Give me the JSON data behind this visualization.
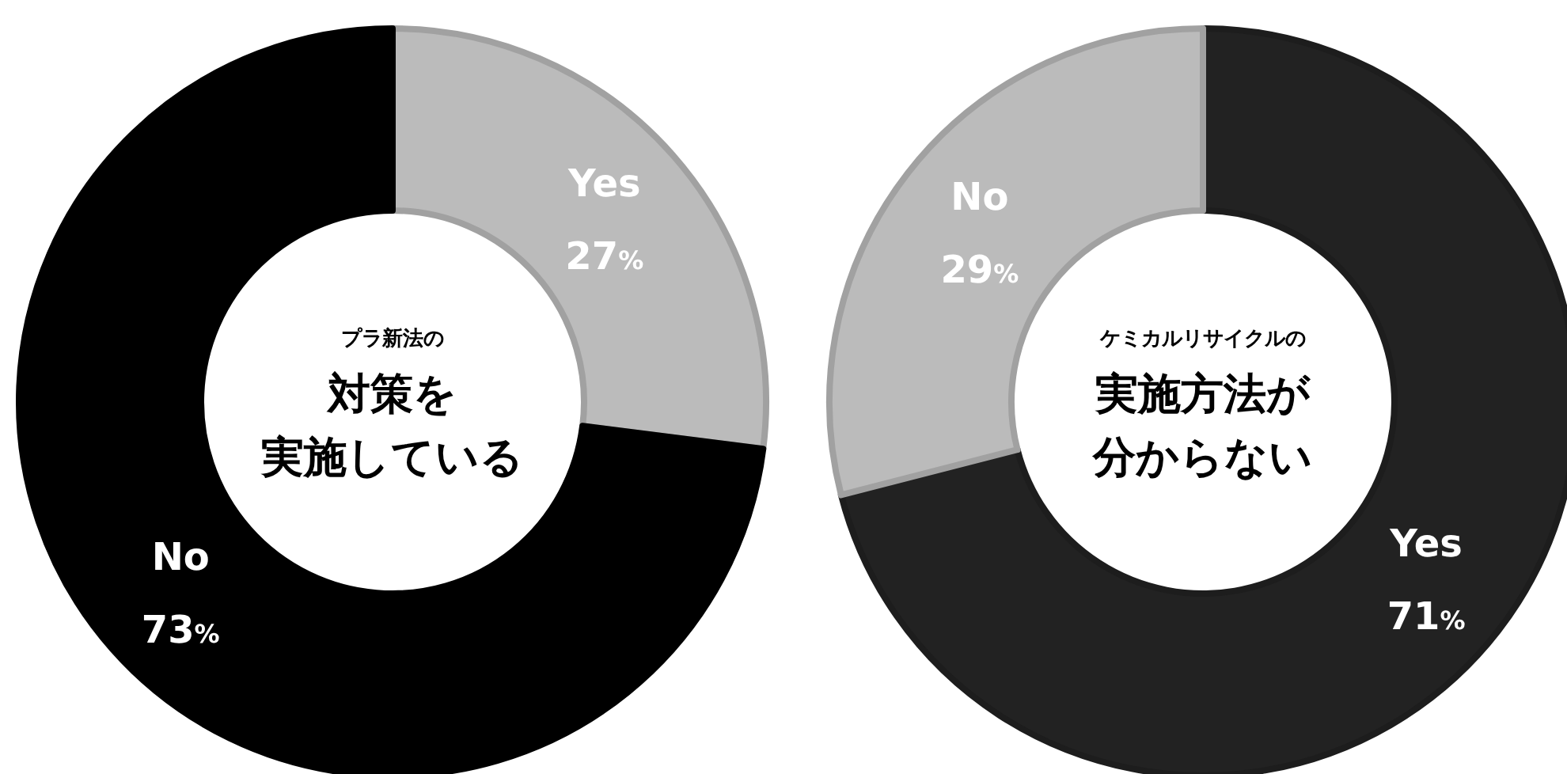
{
  "chart_data": [
    {
      "type": "donut",
      "title": "プラ新法の",
      "annotations": [
        "対策を",
        "実施している"
      ],
      "categories": [
        "Yes",
        "No"
      ],
      "values": [
        27,
        73
      ],
      "colors": [
        "#bbbbbb",
        "#000000"
      ],
      "value_labels": [
        "27%",
        "73%"
      ]
    },
    {
      "type": "donut",
      "title": "ケミカルリサイクルの",
      "annotations": [
        "実施方法が",
        "分からない"
      ],
      "categories": [
        "Yes",
        "No"
      ],
      "values": [
        71,
        29
      ],
      "colors": [
        "#222222",
        "#bbbbbb"
      ],
      "value_labels": [
        "71%",
        "29%"
      ]
    }
  ]
}
